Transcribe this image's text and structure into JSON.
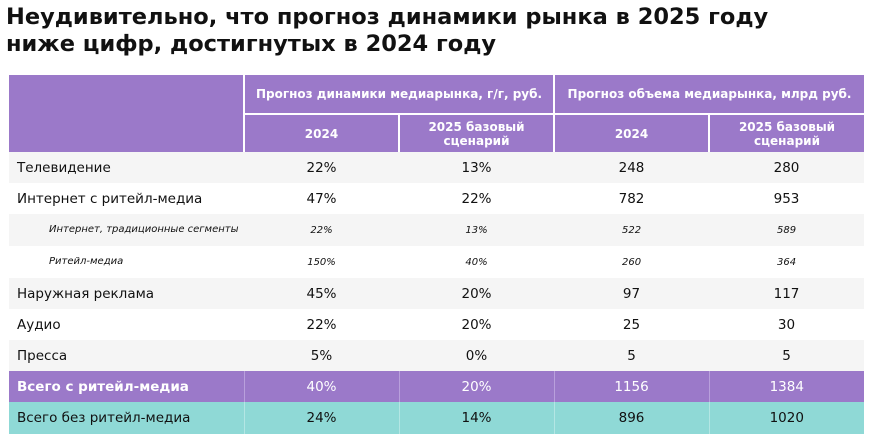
{
  "title": {
    "line1": "Неудивительно, что прогноз динамики рынка в 2025 году",
    "line2": "ниже цифр, достигнутых в 2024 году"
  },
  "table": {
    "group_headers": [
      "Прогноз динамики медиарынка, г/г, руб.",
      "Прогноз объема медиарынка, млрд руб."
    ],
    "sub_headers": [
      "2024",
      "2025 базовый сценарий",
      "2024",
      "2025 базовый сценарий"
    ],
    "rows": [
      {
        "label": "Телевидение",
        "values": [
          "22%",
          "13%",
          "248",
          "280"
        ]
      },
      {
        "label": "Интернет с ритейл-медиа",
        "values": [
          "47%",
          "22%",
          "782",
          "953"
        ]
      },
      {
        "label": "Интернет, традиционные сегменты",
        "values": [
          "22%",
          "13%",
          "522",
          "589"
        ]
      },
      {
        "label": "Ритейл-медиа",
        "values": [
          "150%",
          "40%",
          "260",
          "364"
        ]
      },
      {
        "label": "Наружная реклама",
        "values": [
          "45%",
          "20%",
          "97",
          "117"
        ]
      },
      {
        "label": "Аудио",
        "values": [
          "22%",
          "20%",
          "25",
          "30"
        ]
      },
      {
        "label": "Пресса",
        "values": [
          "5%",
          "0%",
          "5",
          "5"
        ]
      }
    ],
    "totals": [
      {
        "label": "Всего с ритейл-медиа",
        "values": [
          "40%",
          "20%",
          "1156",
          "1384"
        ],
        "color": "#9b79c9"
      },
      {
        "label": "Всего без ритейл-медиа",
        "values": [
          "24%",
          "14%",
          "896",
          "1020"
        ],
        "color": "#8fd9d6"
      }
    ]
  }
}
